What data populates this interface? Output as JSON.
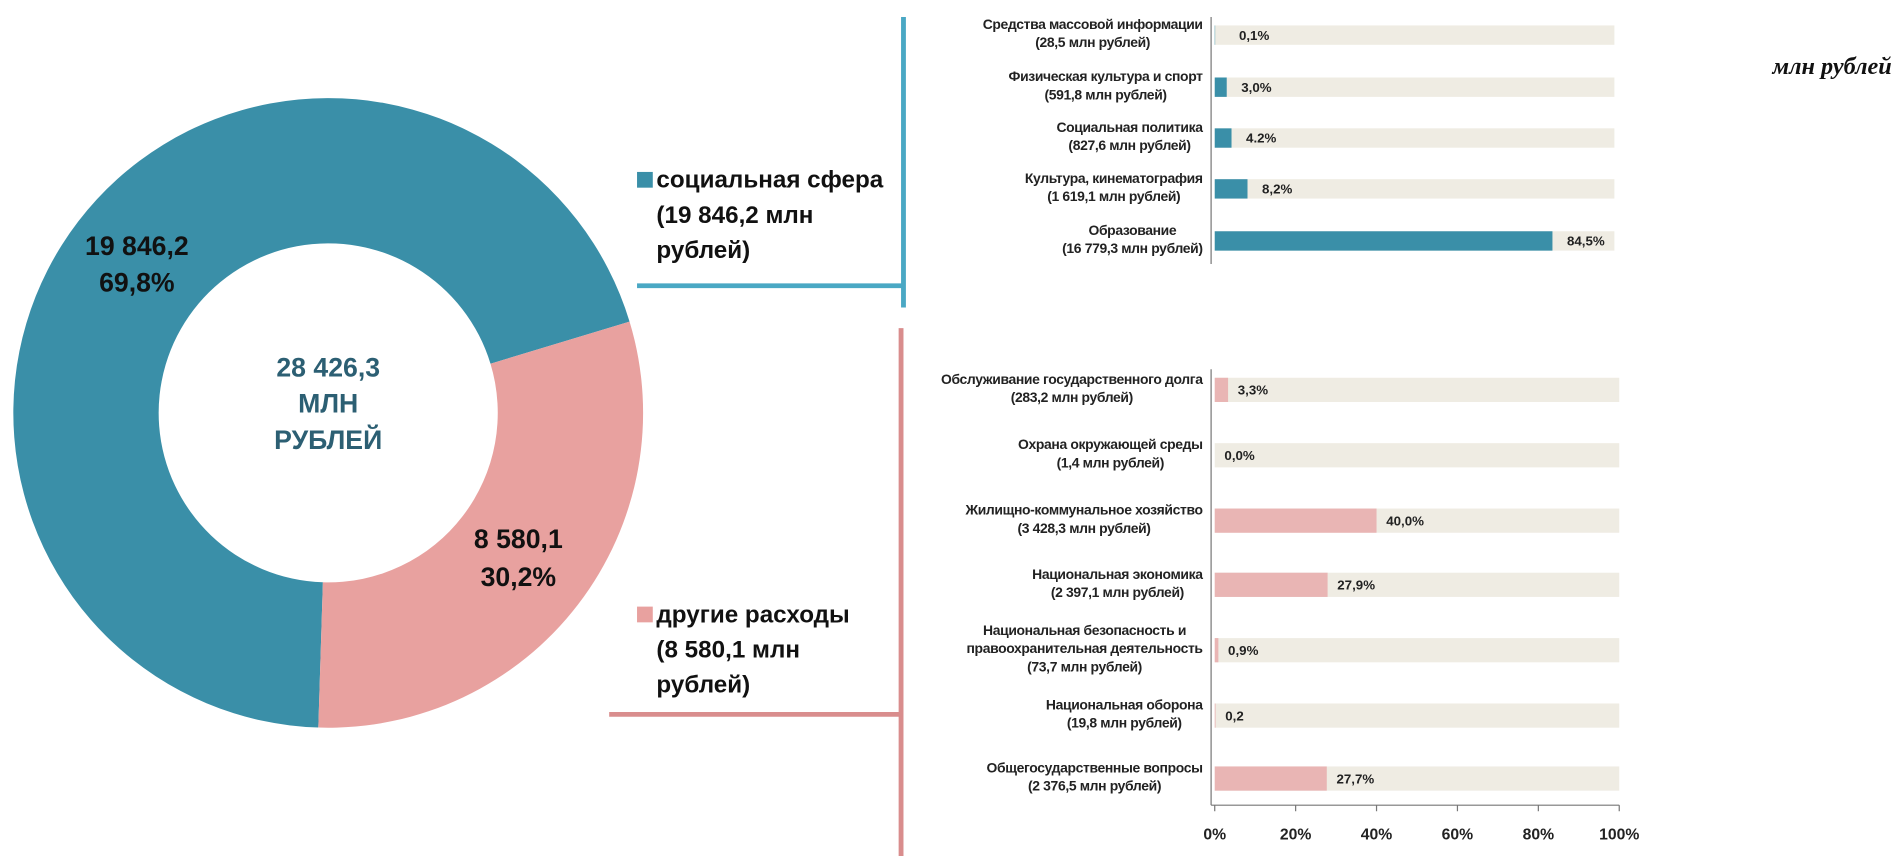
{
  "unit_note": "млн рублей",
  "chart_data": [
    {
      "type": "pie",
      "center_label": [
        "28 426,3",
        "МЛН",
        "РУБЛЕЙ"
      ],
      "categories": [
        "социальная сфера",
        "другие расходы"
      ],
      "legend_details": [
        "(19 846,2 млн рублей)",
        "(8 580,1 млн рублей)"
      ],
      "values": [
        19846.2,
        8580.1
      ],
      "value_labels": [
        "19 846,2",
        "8 580,1"
      ],
      "shares": [
        69.8,
        30.2
      ],
      "share_labels": [
        "69,8%",
        "30,2%"
      ],
      "colors": [
        "#3a8fa8",
        "#e8a19f"
      ]
    },
    {
      "type": "bar",
      "orientation": "horizontal",
      "categories": [
        "Средства массовой информации",
        "Физическая  культура и спорт",
        "Социальная политика",
        "Культура, кинематография",
        "Образование"
      ],
      "category_details": [
        "(28,5 млн рублей)",
        "(591,8 млн рублей)",
        "(827,6 млн рублей)",
        "(1 619,1 млн рублей)",
        "(16 779,3 млн рублей)"
      ],
      "values": [
        0.1,
        3.0,
        4.2,
        8.2,
        84.5
      ],
      "value_labels": [
        "0,1%",
        "3,0%",
        "4.2%",
        "8,2%",
        "84,5%"
      ],
      "xlim": [
        0,
        100
      ],
      "color": "#3a8fa8",
      "track_color": "#efece3"
    },
    {
      "type": "bar",
      "orientation": "horizontal",
      "categories": [
        "Обслуживание государственного долга",
        "Охрана окружающей среды",
        "Жилищно-коммунальное хозяйство",
        "Национальная экономика",
        "Национальная безопасность и\nправоохранительная деятельность",
        "Национальная оборона",
        "Общегосударственные вопросы"
      ],
      "category_details": [
        "(283,2 млн рублей)",
        "(1,4 млн рублей)",
        "(3 428,3 млн рублей)",
        "(2 397,1 млн рублей)",
        "(73,7 млн рублей)",
        "(19,8 млн рублей)",
        "(2 376,5 млн рублей)"
      ],
      "values": [
        3.3,
        0.0,
        40.0,
        27.9,
        0.9,
        0.2,
        27.7
      ],
      "value_labels": [
        "3,3%",
        "0,0%",
        "40,0%",
        "27,9%",
        "0,9%",
        "0,2",
        "27,7%"
      ],
      "xlim": [
        0,
        100
      ],
      "xticks": [
        {
          "value": 0,
          "label": "0%"
        },
        {
          "value": 20,
          "label": "20%"
        },
        {
          "value": 40,
          "label": "40%"
        },
        {
          "value": 60,
          "label": "60%"
        },
        {
          "value": 80,
          "label": "80%"
        },
        {
          "value": 100,
          "label": "100%"
        }
      ],
      "color": "#e9b5b4",
      "track_color": "#efece3"
    }
  ]
}
